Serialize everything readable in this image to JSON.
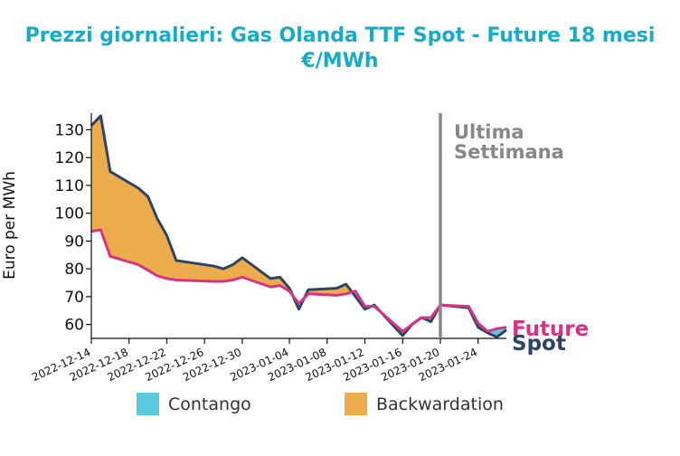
{
  "chart_data": {
    "type": "area",
    "title": "Prezzi giornalieri: Gas Olanda TTF Spot - Future 18 mesi",
    "subtitle": "€/MWh",
    "xlabel": "",
    "ylabel": "Euro per MWh",
    "ylim": [
      55,
      136
    ],
    "yticks": [
      60,
      70,
      80,
      90,
      100,
      110,
      120,
      130
    ],
    "xticks": [
      "2022-12-14",
      "2022-12-18",
      "2022-12-22",
      "2022-12-26",
      "2022-12-30",
      "2023-01-04",
      "2023-01-08",
      "2023-01-12",
      "2023-01-16",
      "2023-01-20",
      "2023-01-24"
    ],
    "x": [
      "2022-12-14",
      "2022-12-15",
      "2022-12-16",
      "2022-12-19",
      "2022-12-20",
      "2022-12-21",
      "2022-12-22",
      "2022-12-23",
      "2022-12-27",
      "2022-12-28",
      "2022-12-29",
      "2022-12-30",
      "2023-01-02",
      "2023-01-03",
      "2023-01-04",
      "2023-01-05",
      "2023-01-06",
      "2023-01-09",
      "2023-01-10",
      "2023-01-11",
      "2023-01-12",
      "2023-01-13",
      "2023-01-16",
      "2023-01-17",
      "2023-01-18",
      "2023-01-19",
      "2023-01-20",
      "2023-01-23",
      "2023-01-24",
      "2023-01-25",
      "2023-01-26",
      "2023-01-27"
    ],
    "series": [
      {
        "name": "Spot",
        "color": "#2e4463",
        "values": [
          131.5,
          135,
          115,
          109,
          106,
          98,
          92,
          83,
          81,
          80,
          81.5,
          84,
          76.5,
          77,
          73,
          65.5,
          72.5,
          73,
          74.5,
          70,
          65.5,
          67,
          56,
          60,
          62.5,
          61,
          67,
          66,
          59,
          57,
          55.5,
          58
        ]
      },
      {
        "name": "Future",
        "color": "#d63384",
        "values": [
          93.5,
          94,
          84.5,
          81.5,
          79.5,
          77.5,
          76.5,
          76,
          75.5,
          75.5,
          76,
          77,
          73.5,
          74,
          72,
          67.5,
          71,
          70.5,
          71,
          72,
          66.5,
          66.5,
          57.5,
          60,
          62.5,
          62.5,
          67,
          66.5,
          60.5,
          57.5,
          58.5,
          59
        ]
      }
    ],
    "annotation": {
      "date": "2023-01-20",
      "text": [
        "Ultima",
        "Settimana"
      ],
      "color": "#888888"
    },
    "legend": {
      "placement": "bottom",
      "items": [
        {
          "label": "Contango",
          "color": "#5bc8df"
        },
        {
          "label": "Backwardation",
          "color": "#edac4c"
        }
      ]
    },
    "grid": false
  }
}
